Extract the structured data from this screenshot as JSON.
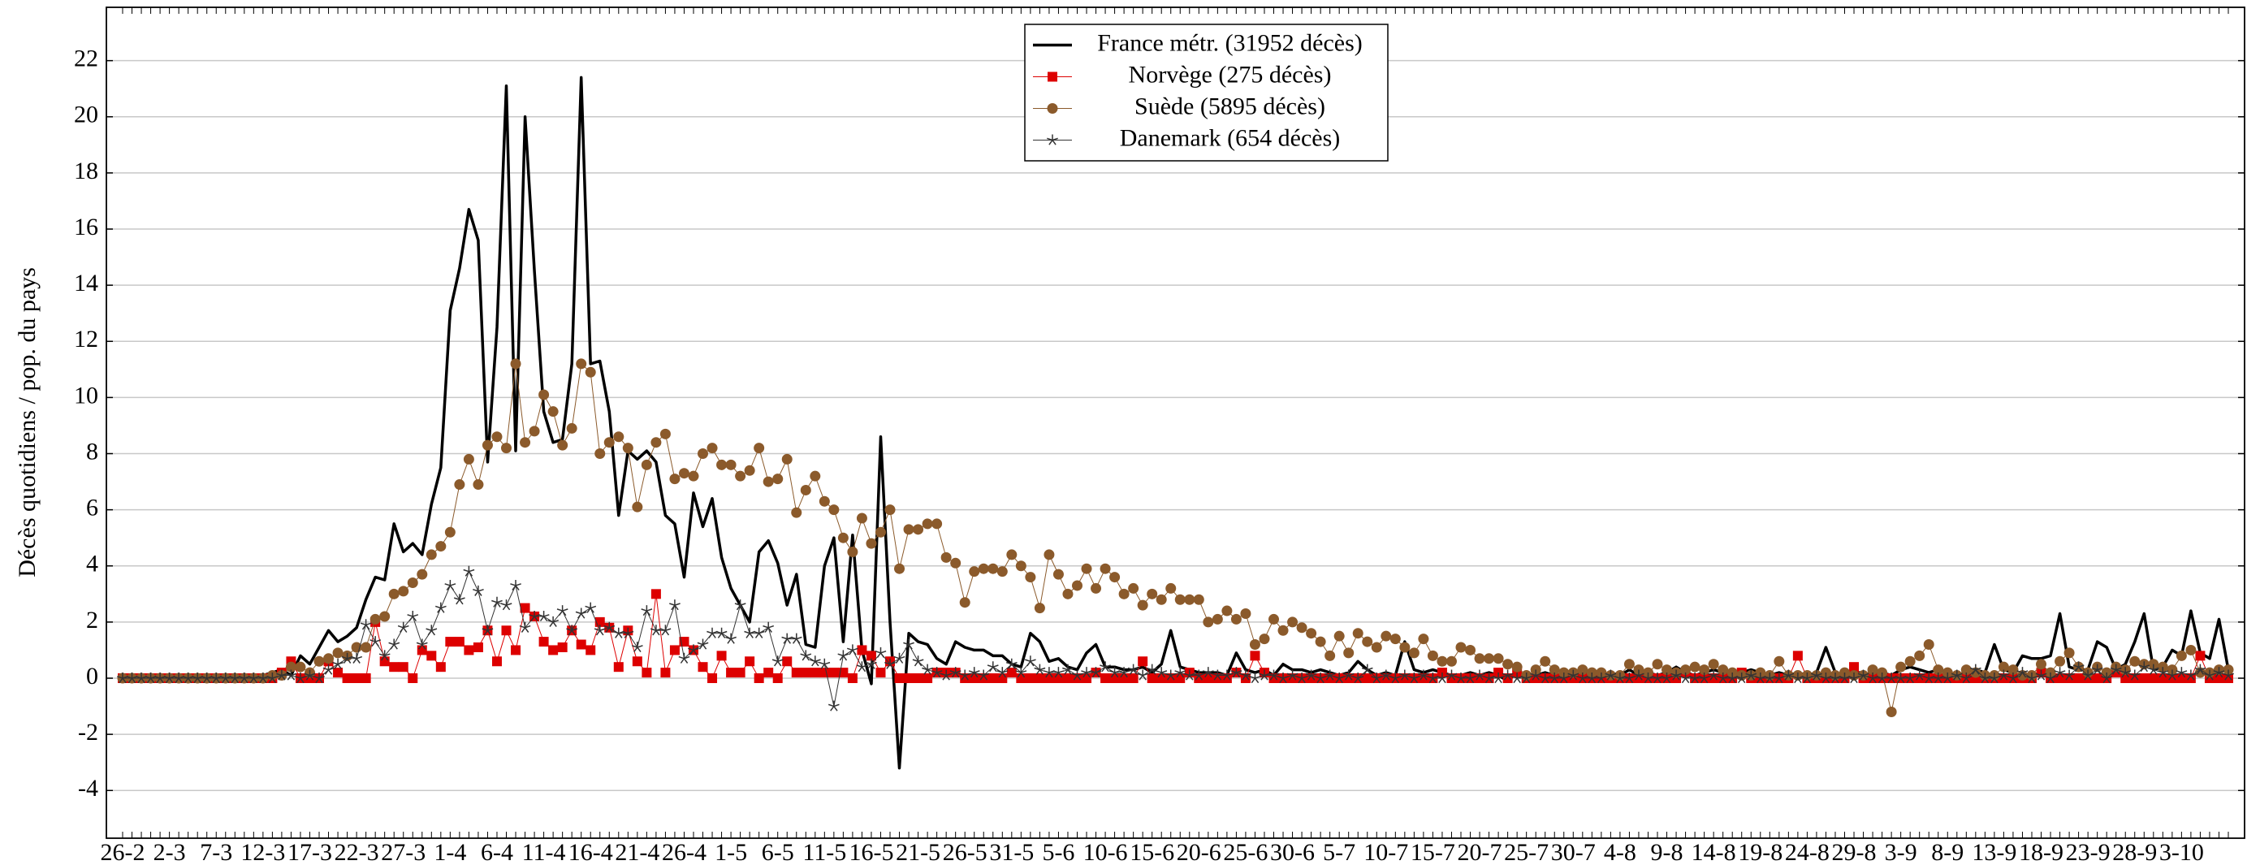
{
  "chart_data": {
    "type": "line",
    "ylabel": "Décès quotidiens / pop. du pays",
    "categories": [
      "26-2",
      null,
      null,
      null,
      null,
      "2-3",
      null,
      null,
      null,
      null,
      "7-3",
      null,
      null,
      null,
      null,
      "12-3",
      null,
      null,
      null,
      null,
      "17-3",
      null,
      null,
      null,
      null,
      "22-3",
      null,
      null,
      null,
      null,
      "27-3",
      null,
      null,
      null,
      null,
      "1-4",
      null,
      null,
      null,
      null,
      "6-4",
      null,
      null,
      null,
      null,
      "11-4",
      null,
      null,
      null,
      null,
      "16-4",
      null,
      null,
      null,
      null,
      "21-4",
      null,
      null,
      null,
      null,
      "26-4",
      null,
      null,
      null,
      null,
      "1-5",
      null,
      null,
      null,
      null,
      "6-5",
      null,
      null,
      null,
      null,
      "11-5",
      null,
      null,
      null,
      null,
      "16-5",
      null,
      null,
      null,
      null,
      "21-5",
      null,
      null,
      null,
      null,
      "26-5",
      null,
      null,
      null,
      null,
      "31-5",
      null,
      null,
      null,
      null,
      "5-6",
      null,
      null,
      null,
      null,
      "10-6",
      null,
      null,
      null,
      null,
      "15-6",
      null,
      null,
      null,
      null,
      "20-6",
      null,
      null,
      null,
      null,
      "25-6",
      null,
      null,
      null,
      null,
      "30-6",
      null,
      null,
      null,
      null,
      "5-7",
      null,
      null,
      null,
      null,
      "10-7",
      null,
      null,
      null,
      null,
      "15-7",
      null,
      null,
      null,
      null,
      "20-7",
      null,
      null,
      null,
      null,
      "25-7",
      null,
      null,
      null,
      null,
      "30-7",
      null,
      null,
      null,
      null,
      "4-8",
      null,
      null,
      null,
      null,
      "9-8",
      null,
      null,
      null,
      null,
      "14-8",
      null,
      null,
      null,
      null,
      "19-8",
      null,
      null,
      null,
      null,
      "24-8",
      null,
      null,
      null,
      null,
      "29-8",
      null,
      null,
      null,
      null,
      "3-9",
      null,
      null,
      null,
      null,
      "8-9",
      null,
      null,
      null,
      null,
      "13-9",
      null,
      null,
      null,
      null,
      "18-9",
      null,
      null,
      null,
      null,
      "23-9",
      null,
      null,
      null,
      null,
      "28-9",
      null,
      null,
      null,
      null,
      "3-10",
      null,
      null,
      null,
      null,
      null
    ],
    "series": [
      {
        "name": "France métr. (31952 décès)",
        "color": "#000000",
        "marker": "none",
        "values": [
          0,
          0,
          0,
          0,
          0,
          0,
          0,
          0,
          0,
          0,
          0,
          0,
          0,
          0,
          0.05,
          0.1,
          0.2,
          0.3,
          0.1,
          0.8,
          0.5,
          1.1,
          1.7,
          1.3,
          1.5,
          1.8,
          2.8,
          3.6,
          3.5,
          5.5,
          4.5,
          4.8,
          4.4,
          6.2,
          7.5,
          13.1,
          14.6,
          16.7,
          15.6,
          7.7,
          12.5,
          21.1,
          8.1,
          20.0,
          14.5,
          9.5,
          8.4,
          8.5,
          11.2,
          21.4,
          11.2,
          11.3,
          9.5,
          5.8,
          8.1,
          7.8,
          8.1,
          7.7,
          5.8,
          5.5,
          3.6,
          6.6,
          5.4,
          6.4,
          4.3,
          3.2,
          2.6,
          2.0,
          4.5,
          4.9,
          4.1,
          2.6,
          3.7,
          1.2,
          1.1,
          4.0,
          5.0,
          1.3,
          5.1,
          1.0,
          -0.2,
          8.6,
          2.0,
          -3.2,
          1.6,
          1.3,
          1.2,
          0.7,
          0.5,
          1.3,
          1.1,
          1.0,
          1.0,
          0.8,
          0.8,
          0.5,
          0.4,
          1.6,
          1.3,
          0.6,
          0.7,
          0.4,
          0.3,
          0.9,
          1.2,
          0.4,
          0.4,
          0.3,
          0.3,
          0.4,
          0.2,
          0.5,
          1.7,
          0.4,
          0.3,
          0.2,
          0.2,
          0.2,
          0.1,
          0.9,
          0.3,
          0.2,
          0.3,
          0.1,
          0.5,
          0.3,
          0.3,
          0.2,
          0.3,
          0.2,
          0.1,
          0.2,
          0.6,
          0.3,
          0.1,
          0.2,
          0.1,
          1.3,
          0.3,
          0.2,
          0.3,
          0.2,
          0.1,
          0.1,
          0.2,
          0.1,
          0.2,
          0.1,
          -0.1,
          0.2,
          0.1,
          0.1,
          0.2,
          0.1,
          0.1,
          0.2,
          0.1,
          0.3,
          0.1,
          0.2,
          0.1,
          0.3,
          0.1,
          0.2,
          0.1,
          0.2,
          0.4,
          0.2,
          0.1,
          0.2,
          0.3,
          0.2,
          0.1,
          0.2,
          0.3,
          0.2,
          0.1,
          0.2,
          0.1,
          0.2,
          0.1,
          0.2,
          1.1,
          0.2,
          0.1,
          0.2,
          0.2,
          0.1,
          0.2,
          0.1,
          0.3,
          0.4,
          0.3,
          0.2,
          0.3,
          0.2,
          0.1,
          0.2,
          0.3,
          0.2,
          1.2,
          0.3,
          0.2,
          0.8,
          0.7,
          0.7,
          0.8,
          2.3,
          0.4,
          0.3,
          0.3,
          1.3,
          1.1,
          0.3,
          0.5,
          1.3,
          2.3,
          0.3,
          0.4,
          1.0,
          0.8,
          2.4,
          0.9,
          0.7,
          2.1,
          0.3
        ]
      },
      {
        "name": "Norvège (275 décès)",
        "color": "#dd0000",
        "marker": "square",
        "values": [
          0,
          0,
          0,
          0,
          0,
          0,
          0,
          0,
          0,
          0,
          0,
          0,
          0,
          0,
          0,
          0,
          0,
          0.2,
          0.6,
          0,
          0,
          0,
          0.6,
          0.2,
          0,
          0,
          0,
          2.0,
          0.6,
          0.4,
          0.4,
          0,
          1.0,
          0.8,
          0.4,
          1.3,
          1.3,
          1.0,
          1.1,
          1.7,
          0.6,
          1.7,
          1.0,
          2.5,
          2.2,
          1.3,
          1.0,
          1.1,
          1.7,
          1.2,
          1.0,
          2.0,
          1.8,
          0.4,
          1.7,
          0.6,
          0.2,
          3.0,
          0.2,
          1.0,
          1.3,
          1.0,
          0.4,
          0,
          0.8,
          0.2,
          0.2,
          0.6,
          0,
          0.2,
          0,
          0.6,
          0.2,
          0.2,
          0.2,
          0.2,
          0.2,
          0.2,
          0,
          1.0,
          0.8,
          0.2,
          0.6,
          0,
          0,
          0,
          0,
          0.2,
          0.2,
          0.2,
          0,
          0,
          0,
          0,
          0,
          0.2,
          0,
          0,
          0,
          0,
          0,
          0,
          0,
          0,
          0.2,
          0,
          0,
          0,
          0,
          0.6,
          0,
          0,
          0,
          0,
          0.2,
          0,
          0,
          0,
          0,
          0.2,
          0,
          0.8,
          0.2,
          0,
          0,
          0,
          0,
          0,
          0,
          0,
          0,
          0,
          0,
          0,
          0,
          0,
          0,
          0,
          0,
          0,
          0,
          0.2,
          0,
          0,
          0,
          0,
          0,
          0.2,
          0,
          0.2,
          0,
          0,
          0,
          0,
          0,
          0,
          0,
          0,
          0,
          0,
          0,
          0,
          0,
          0,
          0,
          0,
          0,
          0.2,
          0,
          0,
          0,
          0,
          0,
          0.2,
          0,
          0,
          0,
          0,
          0,
          0.8,
          0,
          0,
          0,
          0,
          0,
          0.4,
          0,
          0,
          0,
          0,
          0,
          0,
          0,
          0,
          0,
          0,
          0,
          0,
          0,
          0,
          0,
          0,
          0,
          0,
          0,
          0.2,
          0,
          0,
          0,
          0,
          0,
          0,
          0,
          0.2,
          0,
          0,
          0,
          0,
          0,
          0,
          0,
          0,
          0.8,
          0,
          0,
          0
        ]
      },
      {
        "name": "Suède (5895 décès)",
        "color": "#8b5a2b",
        "marker": "circle",
        "values": [
          0,
          0,
          0,
          0,
          0,
          0,
          0,
          0,
          0,
          0,
          0,
          0,
          0,
          0,
          0,
          0,
          0.1,
          0.1,
          0.4,
          0.4,
          0.2,
          0.6,
          0.7,
          0.9,
          0.8,
          1.1,
          1.1,
          2.1,
          2.2,
          3.0,
          3.1,
          3.4,
          3.7,
          4.4,
          4.7,
          5.2,
          6.9,
          7.8,
          6.9,
          8.3,
          8.6,
          8.2,
          11.2,
          8.4,
          8.8,
          10.1,
          9.5,
          8.3,
          8.9,
          11.2,
          10.9,
          8.0,
          8.4,
          8.6,
          8.2,
          6.1,
          7.6,
          8.4,
          8.7,
          7.1,
          7.3,
          7.2,
          8.0,
          8.2,
          7.6,
          7.6,
          7.2,
          7.4,
          8.2,
          7.0,
          7.1,
          7.8,
          5.9,
          6.7,
          7.2,
          6.3,
          6.0,
          5.0,
          4.5,
          5.7,
          4.8,
          5.2,
          6.0,
          3.9,
          5.3,
          5.3,
          5.5,
          5.5,
          4.3,
          4.1,
          2.7,
          3.8,
          3.9,
          3.9,
          3.8,
          4.4,
          4.0,
          3.6,
          2.5,
          4.4,
          3.7,
          3.0,
          3.3,
          3.9,
          3.2,
          3.9,
          3.6,
          3.0,
          3.2,
          2.6,
          3.0,
          2.8,
          3.2,
          2.8,
          2.8,
          2.8,
          2.0,
          2.1,
          2.4,
          2.1,
          2.3,
          1.2,
          1.4,
          2.1,
          1.7,
          2.0,
          1.8,
          1.6,
          1.3,
          0.8,
          1.5,
          0.9,
          1.6,
          1.3,
          1.1,
          1.5,
          1.4,
          1.1,
          0.9,
          1.4,
          0.8,
          0.6,
          0.6,
          1.1,
          1.0,
          0.7,
          0.7,
          0.7,
          0.5,
          0.4,
          0.1,
          0.3,
          0.6,
          0.3,
          0.2,
          0.2,
          0.3,
          0.2,
          0.2,
          0.1,
          0.1,
          0.5,
          0.3,
          0.2,
          0.5,
          0.3,
          0.2,
          0.3,
          0.4,
          0.3,
          0.5,
          0.3,
          0.2,
          0.1,
          0.1,
          0.2,
          0.1,
          0.6,
          0.1,
          0.1,
          0.1,
          0.1,
          0.2,
          0.1,
          0.2,
          0.1,
          0.1,
          0.3,
          0.2,
          -1.2,
          0.4,
          0.6,
          0.8,
          1.2,
          0.3,
          0.2,
          0.1,
          0.3,
          0.2,
          0.1,
          0.1,
          0.4,
          0.3,
          0.1,
          0.1,
          0.5,
          0.2,
          0.6,
          0.9,
          0.4,
          0.2,
          0.4,
          0.2,
          0.4,
          0.3,
          0.6,
          0.5,
          0.5,
          0.4,
          0.3,
          0.8,
          1.0,
          0.2,
          0.2,
          0.3,
          0.3
        ]
      },
      {
        "name": "Danemark (654 décès)",
        "color": "#333333",
        "marker": "star",
        "values": [
          0,
          0,
          0,
          0,
          0,
          0,
          0,
          0,
          0,
          0,
          0,
          0,
          0,
          0,
          0,
          0,
          0,
          0.1,
          0.1,
          0,
          0.1,
          0,
          0.3,
          0.5,
          0.7,
          0.7,
          1.9,
          1.3,
          0.8,
          1.2,
          1.8,
          2.2,
          1.2,
          1.7,
          2.5,
          3.3,
          2.8,
          3.8,
          3.1,
          1.7,
          2.7,
          2.6,
          3.3,
          1.8,
          2.2,
          2.2,
          2.0,
          2.4,
          1.7,
          2.3,
          2.5,
          1.7,
          1.8,
          1.6,
          1.6,
          1.1,
          2.4,
          1.7,
          1.7,
          2.6,
          0.7,
          1.0,
          1.2,
          1.6,
          1.6,
          1.4,
          2.6,
          1.6,
          1.6,
          1.8,
          0.6,
          1.4,
          1.4,
          0.8,
          0.6,
          0.5,
          -1.0,
          0.8,
          1.0,
          0.4,
          0.5,
          0.9,
          0.5,
          0.7,
          1.2,
          0.6,
          0.3,
          0.2,
          0.1,
          0.2,
          0.1,
          0.2,
          0.1,
          0.4,
          0.2,
          0.5,
          0.2,
          0.6,
          0.3,
          0.2,
          0.2,
          0.3,
          0.1,
          0.2,
          0.2,
          0.4,
          0.2,
          0.2,
          0.3,
          0.1,
          0.3,
          0.2,
          0.1,
          0.2,
          0.1,
          0.1,
          0.2,
          0.1,
          0.1,
          0.2,
          0.1,
          0,
          0.1,
          0.1,
          0,
          0.1,
          0,
          0.1,
          0,
          0.1,
          0,
          0.1,
          0,
          0.3,
          0,
          0.1,
          0,
          0.1,
          0,
          0.1,
          0,
          0,
          0.1,
          0,
          0,
          0.1,
          0,
          0,
          0.1,
          0,
          0,
          0.1,
          0,
          0,
          0,
          0.1,
          0,
          0,
          0,
          0.1,
          0,
          0,
          0.1,
          0,
          0,
          0,
          0.1,
          0,
          0,
          0,
          0.1,
          0,
          0,
          0,
          0.1,
          0,
          0,
          0,
          0.1,
          0,
          0,
          0.1,
          0,
          0,
          0,
          0,
          0.1,
          0,
          0,
          0,
          0,
          0,
          0.1,
          0,
          0,
          0,
          0.1,
          0,
          0.3,
          0,
          0,
          0.1,
          0,
          0.2,
          0,
          0.1,
          0,
          0.2,
          0.1,
          0.4,
          0.1,
          0.3,
          0,
          0.3,
          0.2,
          0.1,
          0.4,
          0.3,
          0.2,
          0.1,
          0.2,
          0.1,
          0.3,
          0.1,
          0.2,
          0.1
        ]
      }
    ],
    "ylim": [
      -5.7,
      23.9
    ],
    "yticks": [
      -4,
      -2,
      0,
      2,
      4,
      6,
      8,
      10,
      12,
      14,
      16,
      18,
      20,
      22
    ],
    "grid": true,
    "legend": "top-center"
  }
}
